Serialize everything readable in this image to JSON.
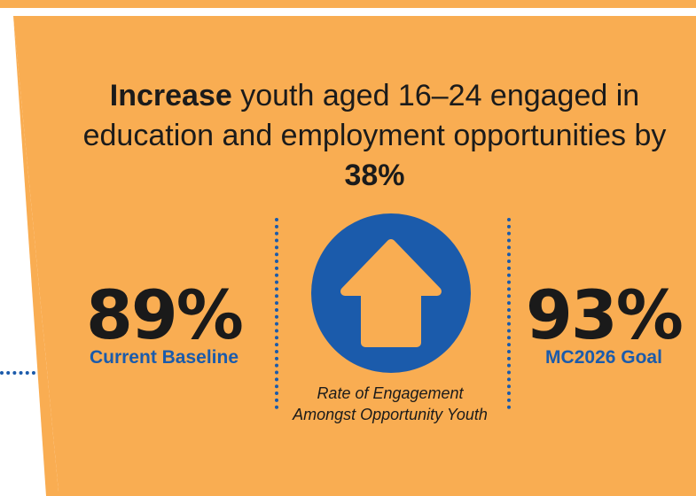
{
  "colors": {
    "background": "#f9ad52",
    "accent_blue": "#1b5bab",
    "text_dark": "#1a1a1a"
  },
  "headline": {
    "bold_lead": "Increase",
    "text_mid": " youth aged 16–24 engaged in education and employment opportunities by ",
    "bold_tail": "38%"
  },
  "baseline": {
    "value": "89%",
    "label": "Current Baseline"
  },
  "goal": {
    "value": "93%",
    "label": "MC2026 Goal"
  },
  "center": {
    "icon": "arrow-up-icon",
    "caption": "Rate of Engagement Amongst Opportunity Youth"
  }
}
